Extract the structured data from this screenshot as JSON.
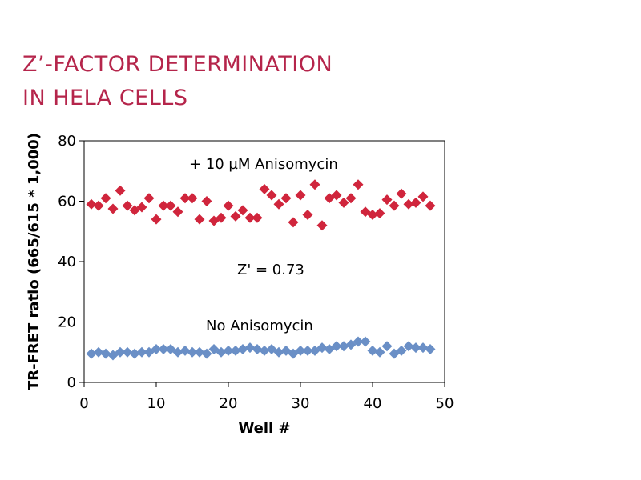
{
  "chart_data": {
    "type": "scatter",
    "title_lines": [
      "Z’-FACTOR DETERMINATION",
      "IN HELA CELLS"
    ],
    "xlabel": "Well #",
    "ylabel": "TR-FRET ratio (665/615 * 1,000)",
    "xlim": [
      0,
      50
    ],
    "ylim": [
      0,
      80
    ],
    "xticks": [
      0,
      10,
      20,
      30,
      40,
      50
    ],
    "yticks": [
      0,
      20,
      40,
      60,
      80
    ],
    "grid": false,
    "annotations": [
      "+ 10 µM Anisomycin",
      "Z' = 0.73",
      "No  Anisomycin"
    ],
    "series": [
      {
        "color": "#d0253c",
        "marker": "diamond",
        "x": [
          1,
          2,
          3,
          4,
          5,
          6,
          7,
          8,
          9,
          10,
          11,
          12,
          13,
          14,
          15,
          16,
          17,
          18,
          19,
          20,
          21,
          22,
          23,
          24,
          25,
          26,
          27,
          28,
          29,
          30,
          31,
          32,
          33,
          34,
          35,
          36,
          37,
          38,
          39,
          40,
          41,
          42,
          43,
          44,
          45,
          46,
          47,
          48
        ],
        "y": [
          59,
          58.5,
          61,
          57.5,
          63.5,
          58.5,
          57,
          58,
          61,
          54,
          58.5,
          58.5,
          56.5,
          61,
          61,
          54,
          60,
          53.5,
          54.5,
          58.5,
          55,
          57,
          54.5,
          54.5,
          64,
          62,
          59,
          61,
          53,
          62,
          55.5,
          65.5,
          52,
          61,
          62,
          59.5,
          61,
          65.5,
          56.5,
          55.5,
          56,
          60.5,
          58.5,
          62.5,
          59,
          59.5,
          61.5,
          58.5
        ]
      },
      {
        "color": "#6a8fc6",
        "marker": "diamond",
        "x": [
          1,
          2,
          3,
          4,
          5,
          6,
          7,
          8,
          9,
          10,
          11,
          12,
          13,
          14,
          15,
          16,
          17,
          18,
          19,
          20,
          21,
          22,
          23,
          24,
          25,
          26,
          27,
          28,
          29,
          30,
          31,
          32,
          33,
          34,
          35,
          36,
          37,
          38,
          39,
          40,
          41,
          42,
          43,
          44,
          45,
          46,
          47,
          48
        ],
        "y": [
          9.5,
          10,
          9.5,
          9,
          10,
          10,
          9.5,
          10,
          10,
          11,
          11,
          11,
          10,
          10.5,
          10,
          10,
          9.5,
          11,
          10,
          10.5,
          10.5,
          11,
          11.5,
          11,
          10.5,
          11,
          10,
          10.5,
          9.5,
          10.5,
          10.5,
          10.5,
          11.5,
          11,
          12,
          12,
          12.5,
          13.5,
          13.5,
          10.5,
          10,
          12,
          9.5,
          10.5,
          12,
          11.5,
          11.5,
          11
        ]
      }
    ]
  }
}
